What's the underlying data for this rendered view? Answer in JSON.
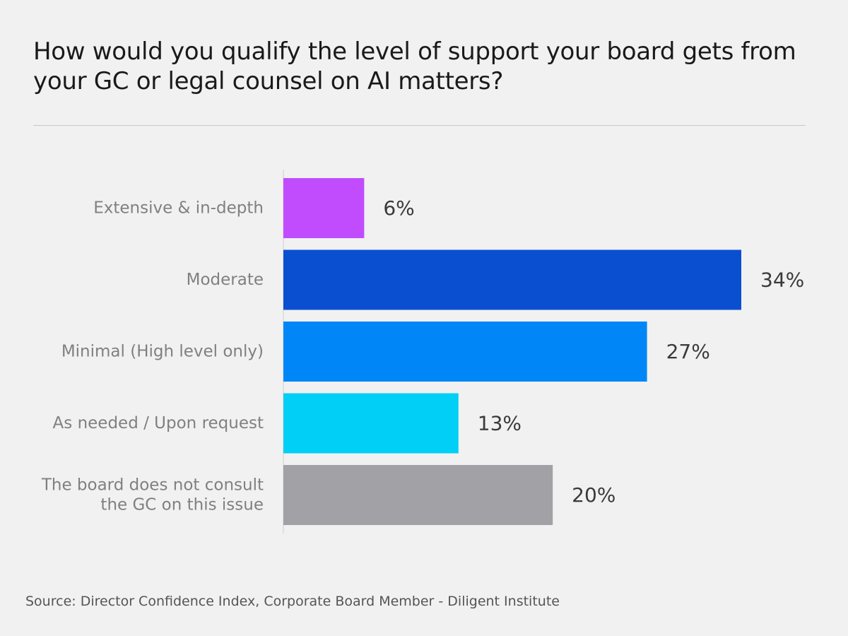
{
  "title": "How would you qualify the level of support your board gets from your GC or legal counsel on AI matters?",
  "source": "Source: Director Confidence Index, Corporate Board Member - Diligent Institute",
  "chart_data": {
    "type": "bar",
    "orientation": "horizontal",
    "title": "How would you qualify the level of support your board gets from your GC or legal counsel on AI matters?",
    "xlabel": "",
    "ylabel": "",
    "grid": false,
    "xlim": [
      0,
      34
    ],
    "categories": [
      [
        "Extensive & in-depth"
      ],
      [
        "Moderate"
      ],
      [
        "Minimal (High level only)"
      ],
      [
        "As needed / Upon request"
      ],
      [
        "The board does not consult",
        "the GC on this issue"
      ]
    ],
    "values": [
      6,
      34,
      27,
      13,
      20
    ],
    "value_labels": [
      "6%",
      "34%",
      "27%",
      "13%",
      "20%"
    ],
    "colors": [
      "#c04cfd",
      "#0b4fd1",
      "#0186f8",
      "#01cff6",
      "#a2a2a6"
    ]
  }
}
